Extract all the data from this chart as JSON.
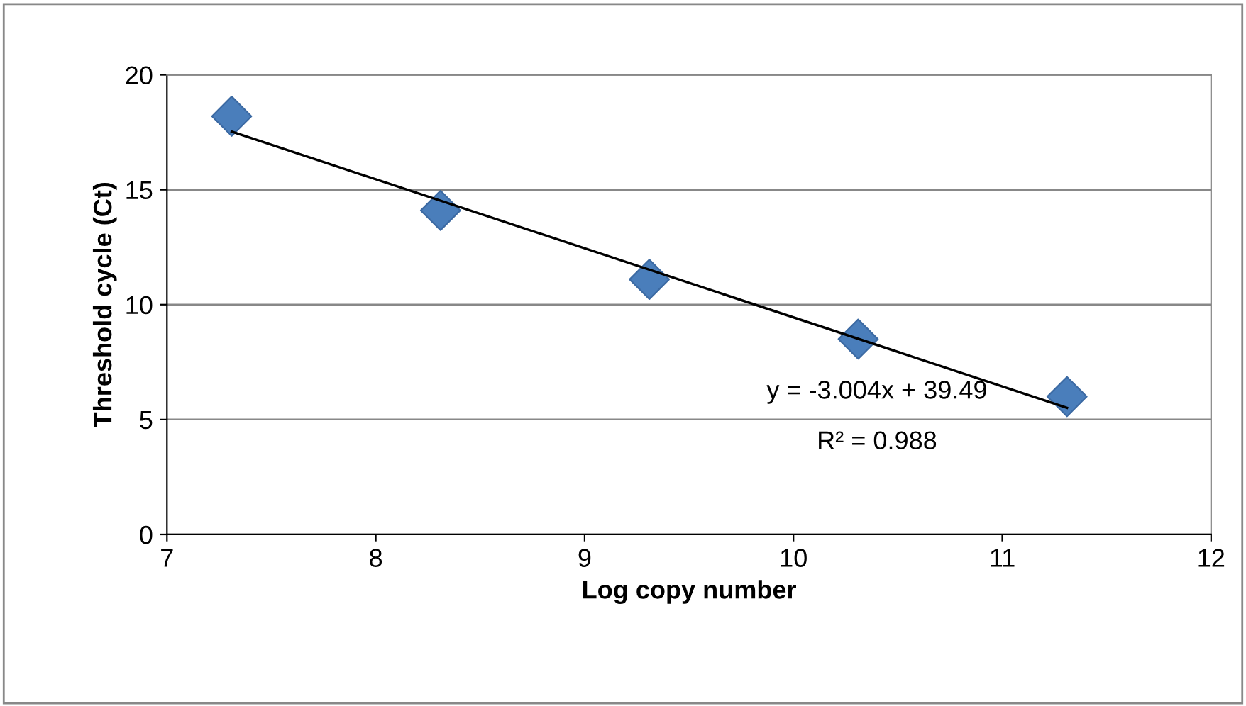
{
  "chart_data": {
    "type": "scatter",
    "xlabel": "Log copy number",
    "ylabel": "Threshold cycle (Ct)",
    "series": [
      {
        "color": "#4a7ebb",
        "marker": "diamond",
        "x": [
          7.31,
          8.31,
          9.31,
          10.31,
          11.31
        ],
        "values": [
          18.2,
          14.1,
          11.1,
          8.5,
          6.0
        ]
      },
      {
        "type": "line",
        "color": "#000000",
        "marker": "none",
        "line_style": "solid",
        "x": [
          7.31,
          11.31
        ],
        "values": [
          17.53,
          5.51
        ]
      }
    ],
    "xlim": [
      7,
      12
    ],
    "xticks": [
      7,
      8,
      9,
      10,
      11,
      12
    ],
    "ylim": [
      0,
      20
    ],
    "yticks": [
      0,
      5,
      10,
      15,
      20
    ],
    "grid": "y",
    "legend": false,
    "annotations": [
      "y = -3.004x + 39.49",
      "R² = 0.988"
    ]
  }
}
